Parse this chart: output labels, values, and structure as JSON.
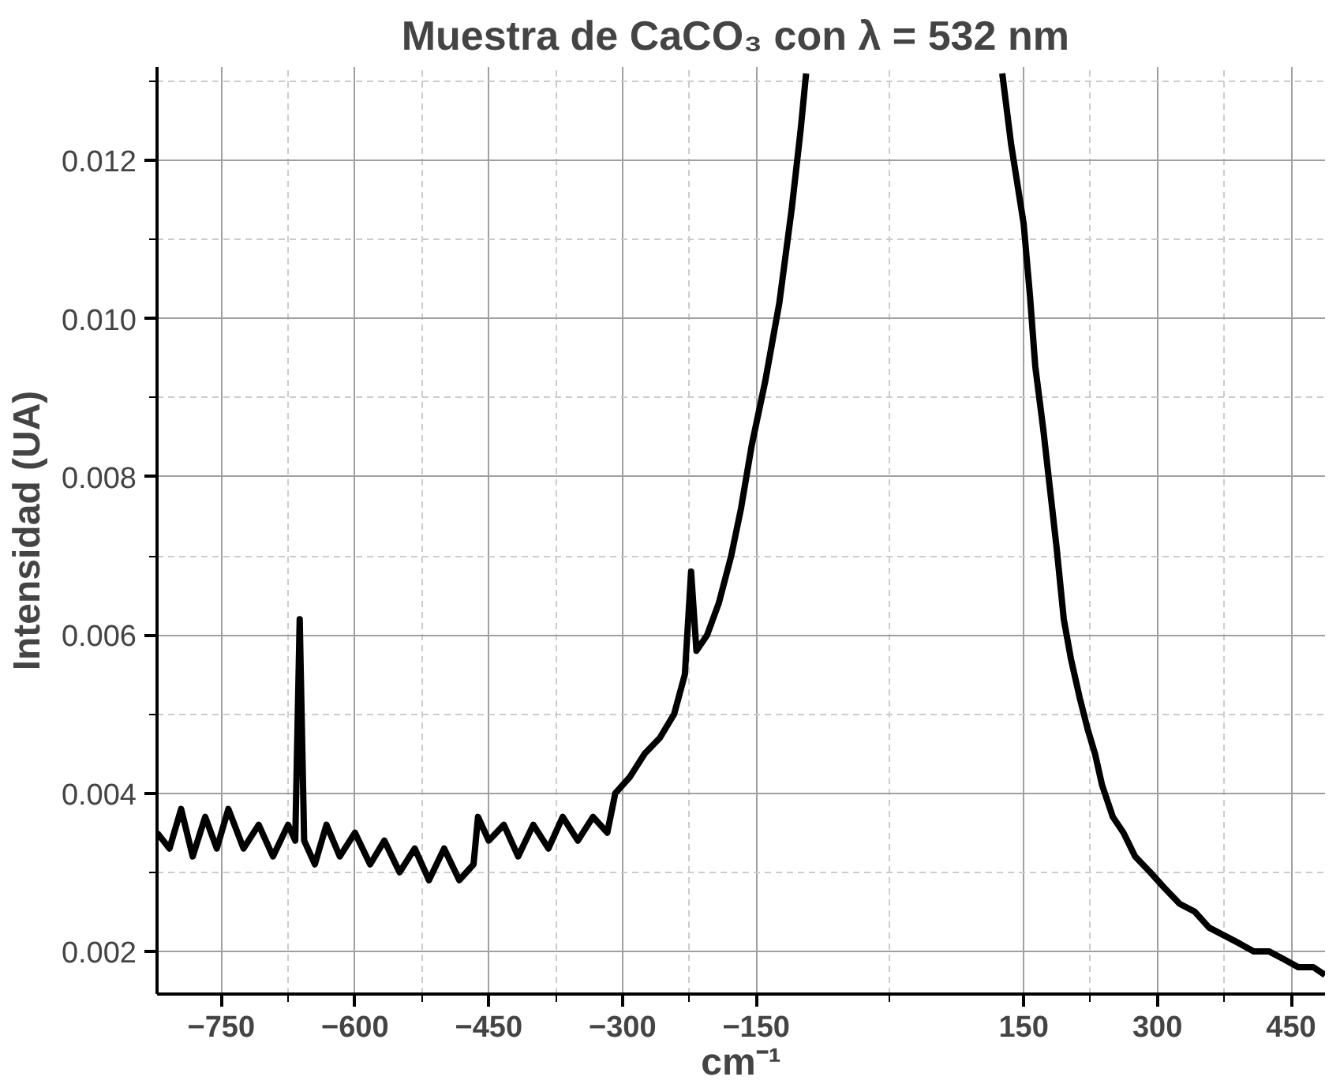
{
  "chart_data": {
    "type": "line",
    "title": "Muestra de CaCO₃ con λ = 532  nm",
    "xlabel": "cm⁻¹",
    "ylabel": "Intensidad (UA)",
    "x": [
      -822,
      -808,
      -795,
      -782,
      -768,
      -755,
      -742,
      -725,
      -708,
      -692,
      -675,
      -667,
      -662,
      -657,
      -645,
      -632,
      -617,
      -600,
      -583,
      -567,
      -550,
      -533,
      -517,
      -500,
      -483,
      -467,
      -462,
      -450,
      -433,
      -417,
      -400,
      -383,
      -367,
      -350,
      -333,
      -317,
      -308,
      -292,
      -275,
      -258,
      -242,
      -230,
      -223,
      -217,
      -205,
      -192,
      -178,
      -167,
      -155,
      -140,
      -124,
      -110,
      -100,
      -94,
      30,
      126,
      136,
      150,
      157,
      163,
      172,
      178,
      187,
      195,
      203,
      213,
      222,
      230,
      238,
      250,
      262,
      275,
      292,
      308,
      325,
      342,
      358,
      375,
      392,
      408,
      425,
      442,
      458,
      475,
      488
    ],
    "series": [
      {
        "color": "#000000",
        "values": [
          0.0035,
          0.0033,
          0.0038,
          0.0032,
          0.0037,
          0.0033,
          0.0038,
          0.0033,
          0.0036,
          0.0032,
          0.0036,
          0.0034,
          0.0062,
          0.0034,
          0.0031,
          0.0036,
          0.0032,
          0.0035,
          0.0031,
          0.0034,
          0.003,
          0.0033,
          0.0029,
          0.0033,
          0.0029,
          0.0031,
          0.0037,
          0.0034,
          0.0036,
          0.0032,
          0.0036,
          0.0033,
          0.0037,
          0.0034,
          0.0037,
          0.0035,
          0.004,
          0.0042,
          0.0045,
          0.0047,
          0.005,
          0.0055,
          0.0068,
          0.0058,
          0.006,
          0.0064,
          0.007,
          0.0076,
          0.0084,
          0.0092,
          0.0102,
          0.0114,
          0.0124,
          0.0131,
          null,
          0.0131,
          0.0122,
          0.0112,
          0.0103,
          0.0094,
          0.0086,
          0.008,
          0.0071,
          0.0062,
          0.0057,
          0.0052,
          0.0048,
          0.0045,
          0.0041,
          0.0037,
          0.0035,
          0.0032,
          0.003,
          0.0028,
          0.0026,
          0.0025,
          0.0023,
          0.0022,
          0.0021,
          0.002,
          0.002,
          0.0019,
          0.0018,
          0.0018,
          0.0017
        ]
      }
    ],
    "xlim": [
      -822,
      488
    ],
    "ylim": [
      0.00146,
      0.01318
    ],
    "xticks": [
      -750,
      -600,
      -450,
      -300,
      -150,
      150,
      300,
      450
    ],
    "yticks": [
      {
        "value": 0.002,
        "label": "0.002"
      },
      {
        "value": 0.004,
        "label": "0.004"
      },
      {
        "value": 0.006,
        "label": "0.006"
      },
      {
        "value": 0.008,
        "label": "0.008"
      },
      {
        "value": 0.01,
        "label": "0.010"
      },
      {
        "value": 0.012,
        "label": "0.012"
      }
    ],
    "grid": true,
    "line_style": "solid"
  }
}
